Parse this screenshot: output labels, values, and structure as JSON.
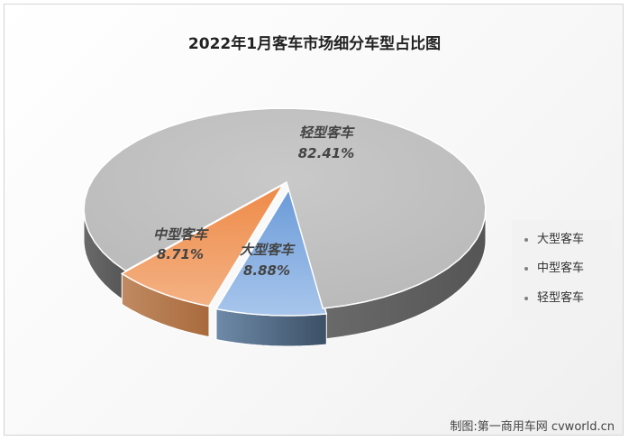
{
  "title": "2022年1月客车市场细分车型占比图",
  "chart_data": {
    "type": "pie",
    "title": "2022年1月客车市场细分车型占比图",
    "slices": [
      {
        "label": "大型客车",
        "value": 8.88,
        "value_label": "8.88%",
        "color": "#8fb4e3"
      },
      {
        "label": "中型客车",
        "value": 8.71,
        "value_label": "8.71%",
        "color": "#f0a068"
      },
      {
        "label": "轻型客车",
        "value": 82.41,
        "value_label": "82.41%",
        "color": "#c2c2c2"
      }
    ],
    "legend_position": "right",
    "style": "3d"
  },
  "legend": {
    "items": [
      "大型客车",
      "中型客车",
      "轻型客车"
    ]
  },
  "credit": "制图:第一商用车网 cvworld.cn"
}
